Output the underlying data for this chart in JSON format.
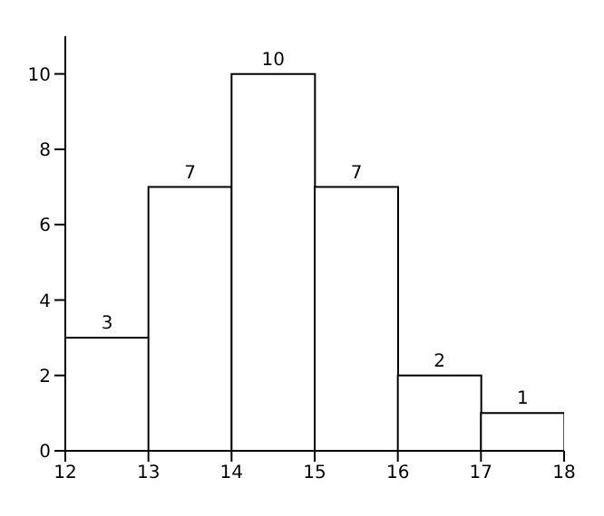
{
  "chart_data": {
    "type": "histogram",
    "bins": [
      12,
      13,
      14,
      15,
      16,
      17,
      18
    ],
    "values": [
      3,
      7,
      10,
      7,
      2,
      1
    ],
    "color": "#ffffff",
    "xlim": [
      12,
      18
    ],
    "xticks": [
      12,
      13,
      14,
      15,
      16,
      17,
      18
    ],
    "ylim": [
      0,
      11
    ],
    "yticks": [
      0,
      2,
      4,
      6,
      8,
      10
    ],
    "data_labels": true,
    "grid": false
  }
}
